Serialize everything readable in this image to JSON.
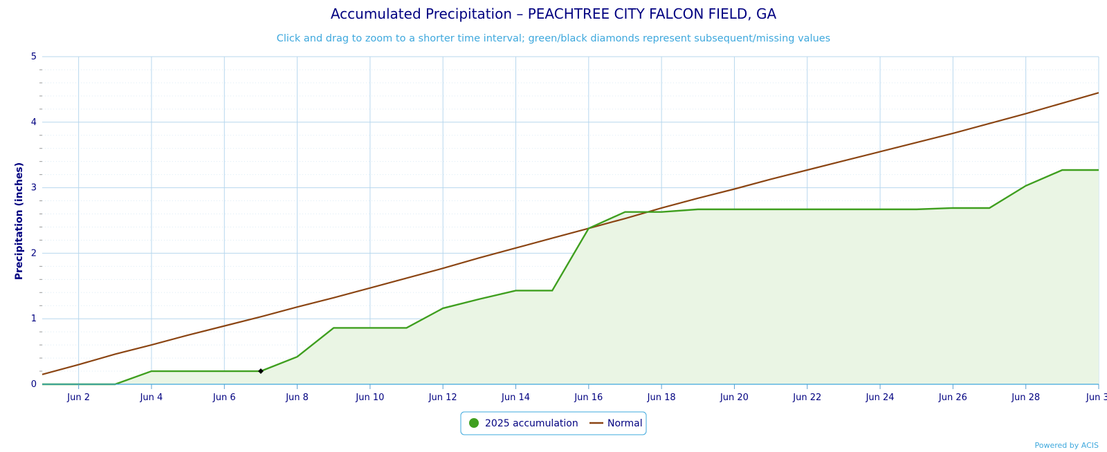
{
  "chart_data": {
    "type": "area",
    "title": "Accumulated Precipitation – PEACHTREE CITY FALCON FIELD, GA",
    "subtitle": "Click and drag to zoom to a shorter time interval; green/black diamonds represent subsequent/missing values",
    "ylabel": "Precipitation (inches)",
    "xlabel": "",
    "ylim": [
      0,
      5
    ],
    "yticks": [
      0,
      1,
      2,
      3,
      4,
      5
    ],
    "xlim": [
      1,
      30
    ],
    "xticks": [
      "Jun 2",
      "Jun 4",
      "Jun 6",
      "Jun 8",
      "Jun 10",
      "Jun 12",
      "Jun 14",
      "Jun 16",
      "Jun 18",
      "Jun 20",
      "Jun 22",
      "Jun 24",
      "Jun 26",
      "Jun 28",
      "Jun 3"
    ],
    "grid": true,
    "legend_position": "bottom-center",
    "credit": "Powered by ACIS",
    "series": [
      {
        "name": "2025 accumulation",
        "color": "#3f9f1f",
        "fill": "#eaf5e4",
        "x": [
          1,
          2,
          3,
          4,
          5,
          6,
          7,
          8,
          9,
          10,
          11,
          12,
          13,
          14,
          15,
          16,
          17,
          18,
          19,
          20,
          21,
          22,
          23,
          24,
          25,
          26,
          27,
          28,
          29,
          30
        ],
        "values": [
          0,
          0,
          0,
          0.2,
          0.2,
          0.2,
          0.2,
          0.42,
          0.86,
          0.86,
          0.86,
          1.16,
          1.3,
          1.43,
          1.43,
          2.38,
          2.63,
          2.63,
          2.67,
          2.67,
          2.67,
          2.67,
          2.67,
          2.67,
          2.67,
          2.69,
          2.69,
          3.03,
          3.27,
          3.27
        ],
        "missing_markers": [
          7
        ]
      },
      {
        "name": "Normal",
        "color": "#8b4513",
        "x": [
          1,
          2,
          3,
          4,
          5,
          6,
          7,
          8,
          9,
          10,
          11,
          12,
          13,
          14,
          15,
          16,
          17,
          18,
          19,
          20,
          21,
          22,
          23,
          24,
          25,
          26,
          27,
          28,
          29,
          30
        ],
        "values": [
          0.15,
          0.3,
          0.46,
          0.6,
          0.75,
          0.89,
          1.03,
          1.18,
          1.32,
          1.47,
          1.62,
          1.77,
          1.93,
          2.08,
          2.23,
          2.38,
          2.53,
          2.69,
          2.84,
          2.98,
          3.13,
          3.27,
          3.41,
          3.55,
          3.69,
          3.83,
          3.98,
          4.13,
          4.29,
          4.45
        ]
      }
    ]
  }
}
